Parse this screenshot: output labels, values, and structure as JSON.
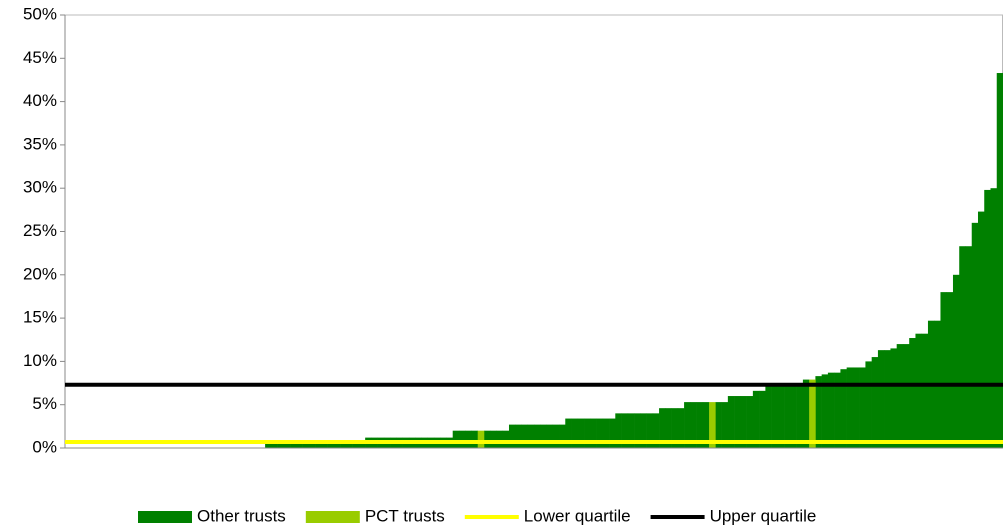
{
  "chart_data": {
    "type": "bar",
    "ylim": [
      0,
      50
    ],
    "yticks": [
      {
        "value": 0,
        "label": "0%"
      },
      {
        "value": 5,
        "label": "5%"
      },
      {
        "value": 10,
        "label": "10%"
      },
      {
        "value": 15,
        "label": "15%"
      },
      {
        "value": 20,
        "label": "20%"
      },
      {
        "value": 25,
        "label": "25%"
      },
      {
        "value": 30,
        "label": "30%"
      },
      {
        "value": 35,
        "label": "35%"
      },
      {
        "value": 40,
        "label": "40%"
      },
      {
        "value": 45,
        "label": "45%"
      },
      {
        "value": 50,
        "label": "50%"
      }
    ],
    "series": [
      {
        "name": "Other trusts",
        "color": "#008000",
        "values": [
          0,
          0,
          0,
          0,
          0,
          0,
          0,
          0,
          0,
          0,
          0,
          0,
          0,
          0,
          0,
          0,
          0,
          0,
          0,
          0,
          0,
          0,
          0,
          0,
          0,
          0,
          0,
          0,
          0,
          0,
          0,
          0,
          0.7,
          0.7,
          0.7,
          0.7,
          0.7,
          0.7,
          0.7,
          0.7,
          0.7,
          0.7,
          0.7,
          0.7,
          0.7,
          0.7,
          0.7,
          0.7,
          1.2,
          1.2,
          1.2,
          1.2,
          1.2,
          1.2,
          1.2,
          1.2,
          1.2,
          1.2,
          1.2,
          1.2,
          1.2,
          1.2,
          2,
          2,
          2,
          2,
          null,
          2,
          2,
          2,
          2,
          2.7,
          2.7,
          2.7,
          2.7,
          2.7,
          2.7,
          2.7,
          2.7,
          2.7,
          3.4,
          3.4,
          3.4,
          3.4,
          3.4,
          3.4,
          3.4,
          3.4,
          4,
          4,
          4,
          4,
          4,
          4,
          4,
          4.6,
          4.6,
          4.6,
          4.6,
          5.3,
          5.3,
          5.3,
          5.3,
          null,
          5.3,
          5.3,
          6,
          6,
          6,
          6,
          6.6,
          6.6,
          7.2,
          7.2,
          7.2,
          7.2,
          7.2,
          7.2,
          7.9,
          null,
          8.3,
          8.5,
          8.7,
          8.7,
          9.1,
          9.3,
          9.3,
          9.3,
          10,
          10.5,
          11.3,
          11.3,
          11.5,
          12,
          12,
          12.7,
          13.2,
          13.2,
          14.7,
          14.7,
          18,
          18,
          20,
          23.3,
          23.3,
          26,
          27.3,
          29.8,
          30,
          43.3
        ]
      },
      {
        "name": "PCT trusts",
        "color": "#99cc00",
        "values": [
          null,
          null,
          null,
          null,
          null,
          null,
          null,
          null,
          null,
          null,
          null,
          null,
          null,
          null,
          null,
          null,
          null,
          null,
          null,
          null,
          null,
          null,
          null,
          null,
          null,
          null,
          null,
          null,
          null,
          null,
          null,
          null,
          null,
          null,
          null,
          null,
          null,
          null,
          null,
          null,
          null,
          null,
          null,
          null,
          null,
          null,
          null,
          null,
          null,
          null,
          null,
          null,
          null,
          null,
          null,
          null,
          null,
          null,
          null,
          null,
          null,
          null,
          null,
          null,
          null,
          null,
          2,
          null,
          null,
          null,
          null,
          null,
          null,
          null,
          null,
          null,
          null,
          null,
          null,
          null,
          null,
          null,
          null,
          null,
          null,
          null,
          null,
          null,
          null,
          null,
          null,
          null,
          null,
          null,
          null,
          null,
          null,
          null,
          null,
          null,
          null,
          null,
          null,
          5.3,
          null,
          null,
          null,
          null,
          null,
          null,
          null,
          null,
          null,
          null,
          null,
          null,
          null,
          null,
          null,
          7.9,
          null,
          null,
          null,
          null,
          null,
          null,
          null,
          null,
          null,
          null,
          null,
          null,
          null,
          null,
          null,
          null,
          null,
          null,
          null,
          null,
          null,
          null,
          null,
          null,
          null,
          null,
          null,
          null,
          null,
          null
        ]
      }
    ],
    "lines": [
      {
        "name": "Lower quartile",
        "color": "#ffff00",
        "value": 0.7
      },
      {
        "name": "Upper quartile",
        "color": "#000000",
        "value": 7.3
      }
    ],
    "legend": "bottom"
  }
}
